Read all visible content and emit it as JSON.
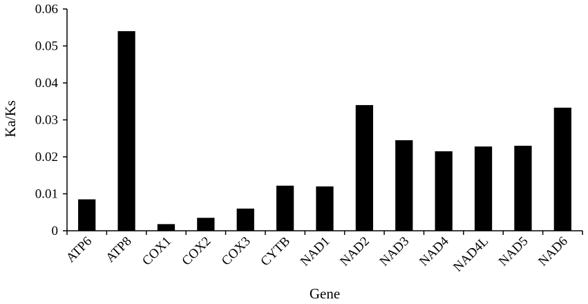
{
  "chart_data": {
    "type": "bar",
    "categories": [
      "ATP6",
      "ATP8",
      "COX1",
      "COX2",
      "COX3",
      "CYTB",
      "NAD1",
      "NAD2",
      "NAD3",
      "NAD4",
      "NAD4L",
      "NAD5",
      "NAD6"
    ],
    "values": [
      0.0085,
      0.054,
      0.0018,
      0.0035,
      0.006,
      0.0122,
      0.012,
      0.034,
      0.0245,
      0.0215,
      0.0228,
      0.023,
      0.0333
    ],
    "xlabel": "Gene",
    "ylabel": "Ka/Ks",
    "ylim": [
      0,
      0.06
    ],
    "yticks": [
      "0",
      "0.01",
      "0.02",
      "0.03",
      "0.04",
      "0.05",
      "0.06"
    ],
    "grid": false,
    "colors": {
      "bar": "#000000",
      "axis": "#000000"
    }
  }
}
